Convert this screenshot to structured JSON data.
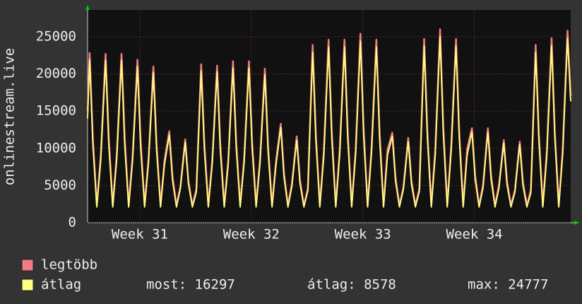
{
  "chart_data": {
    "type": "line",
    "y_label": "onlinestream.live",
    "xlim": [
      0,
      30.33
    ],
    "xticks": [
      {
        "value": 3.28,
        "label": "Week 31"
      },
      {
        "value": 10.28,
        "label": "Week 32"
      },
      {
        "value": 17.28,
        "label": "Week 33"
      },
      {
        "value": 24.28,
        "label": "Week 34"
      }
    ],
    "ylim": [
      0,
      28600
    ],
    "yticks": [
      0,
      5000,
      10000,
      15000,
      20000,
      25000
    ],
    "grid": true,
    "x": [
      0,
      0.13,
      0.33,
      0.58,
      0.83,
      1.13,
      1.33,
      1.58,
      1.83,
      2.13,
      2.33,
      2.58,
      2.83,
      3.13,
      3.33,
      3.58,
      3.83,
      4.13,
      4.33,
      4.58,
      4.83,
      5.13,
      5.33,
      5.58,
      5.83,
      6.13,
      6.33,
      6.58,
      6.83,
      7.13,
      7.33,
      7.58,
      7.83,
      8.13,
      8.33,
      8.58,
      8.83,
      9.13,
      9.33,
      9.58,
      9.83,
      10.13,
      10.33,
      10.58,
      10.83,
      11.13,
      11.33,
      11.58,
      11.83,
      12.13,
      12.33,
      12.58,
      12.83,
      13.13,
      13.33,
      13.58,
      13.83,
      14.13,
      14.33,
      14.58,
      14.83,
      15.13,
      15.33,
      15.58,
      15.83,
      16.13,
      16.33,
      16.58,
      16.83,
      17.13,
      17.33,
      17.58,
      17.83,
      18.13,
      18.33,
      18.58,
      18.83,
      19.13,
      19.33,
      19.58,
      19.83,
      20.13,
      20.33,
      20.58,
      20.83,
      21.13,
      21.33,
      21.58,
      21.83,
      22.13,
      22.33,
      22.58,
      22.83,
      23.13,
      23.33,
      23.58,
      23.83,
      24.13,
      24.33,
      24.58,
      24.83,
      25.13,
      25.33,
      25.58,
      25.83,
      26.13,
      26.33,
      26.58,
      26.83,
      27.13,
      27.33,
      27.58,
      27.83,
      28.13,
      28.33,
      28.58,
      28.83,
      29.13,
      29.33,
      29.58,
      29.83,
      30.13,
      30.33
    ],
    "series": [
      {
        "name": "legtöbb",
        "color": "#f47a84",
        "values": [
          15000,
          22800,
          11400,
          2300,
          9100,
          22700,
          11400,
          2300,
          9100,
          22700,
          11400,
          2300,
          9100,
          21900,
          11000,
          2300,
          8800,
          21000,
          10500,
          2300,
          8400,
          12300,
          6200,
          2300,
          4900,
          11200,
          5600,
          2300,
          4500,
          21300,
          10700,
          2300,
          8500,
          21100,
          10600,
          2300,
          8400,
          21700,
          10900,
          2300,
          8700,
          21700,
          10900,
          2300,
          8700,
          20700,
          10400,
          2300,
          8300,
          13300,
          6700,
          2300,
          5300,
          11600,
          5800,
          2300,
          4600,
          23900,
          12000,
          2300,
          9600,
          24600,
          12300,
          2300,
          9800,
          24600,
          12300,
          2300,
          9800,
          25400,
          12700,
          2300,
          10200,
          24600,
          12300,
          2300,
          9800,
          12100,
          6100,
          2300,
          4800,
          11400,
          5700,
          2300,
          4600,
          24700,
          12400,
          2300,
          9900,
          26000,
          13000,
          2300,
          10400,
          24700,
          12400,
          2300,
          9900,
          12700,
          6400,
          2300,
          5100,
          12700,
          6400,
          2300,
          5100,
          11100,
          5600,
          2300,
          4400,
          10900,
          5500,
          2300,
          4400,
          23900,
          12000,
          2300,
          9600,
          24800,
          12400,
          2300,
          9900,
          25800,
          17000
        ]
      },
      {
        "name": "átlag",
        "color": "#ffff80",
        "values": [
          14000,
          21900,
          10500,
          2100,
          8400,
          21800,
          10400,
          2100,
          8400,
          21800,
          10400,
          2100,
          8400,
          21000,
          10100,
          2100,
          8100,
          20200,
          9700,
          2100,
          7800,
          11800,
          5700,
          2100,
          4600,
          10800,
          5200,
          2100,
          4100,
          20400,
          9800,
          2100,
          7900,
          20300,
          9700,
          2100,
          7800,
          20800,
          10000,
          2100,
          8000,
          20800,
          10000,
          2100,
          8000,
          19900,
          9500,
          2100,
          7700,
          12800,
          6100,
          2100,
          4900,
          11100,
          5300,
          2100,
          4300,
          22900,
          11000,
          2100,
          8800,
          23600,
          11300,
          2100,
          9100,
          23600,
          11300,
          2100,
          9100,
          24400,
          11700,
          2100,
          9400,
          23600,
          11300,
          2100,
          9100,
          11600,
          5600,
          2100,
          4500,
          10900,
          5200,
          2100,
          4200,
          23700,
          11400,
          2100,
          9100,
          25000,
          12000,
          2100,
          9600,
          23700,
          11400,
          2100,
          9100,
          12200,
          5800,
          2100,
          4700,
          12200,
          5800,
          2100,
          4700,
          10700,
          5100,
          2100,
          4100,
          10500,
          5000,
          2100,
          4000,
          22900,
          11000,
          2100,
          8800,
          23800,
          11400,
          2100,
          9200,
          24800,
          16297
        ]
      }
    ],
    "stats": [
      "most: 16297",
      "átlag: 8578",
      "max: 24777"
    ]
  }
}
